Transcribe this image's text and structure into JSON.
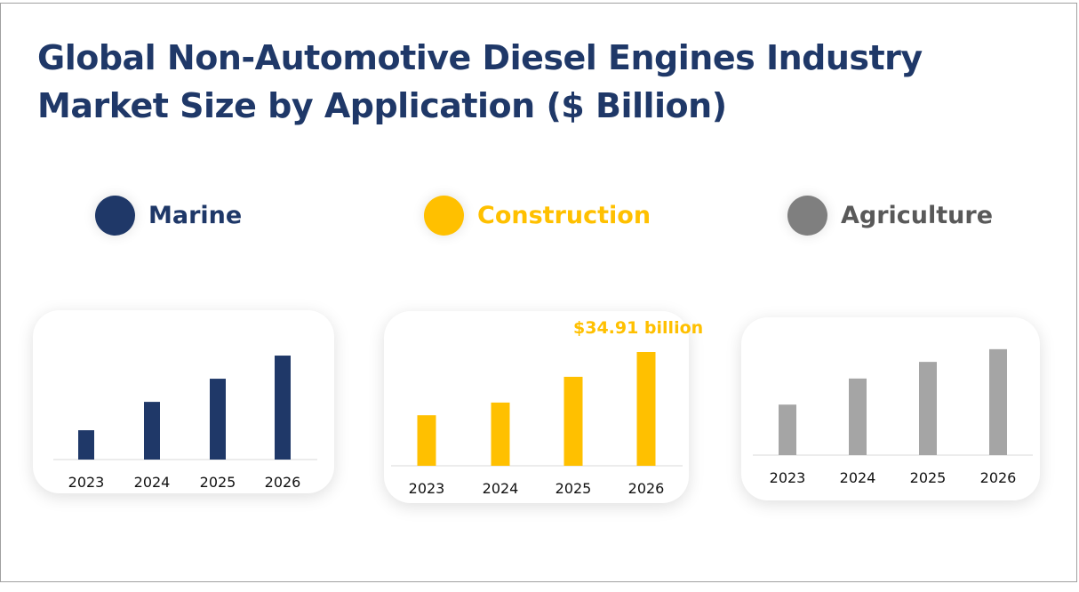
{
  "title": "Global Non-Automotive Diesel Engines Industry Market Size by Application ($ Billion)",
  "legend": [
    {
      "label": "Marine",
      "color": "#1f3868"
    },
    {
      "label": "Construction",
      "color": "#ffc000"
    },
    {
      "label": "Agriculture",
      "color": "#7f7f7f"
    }
  ],
  "chart_data": [
    {
      "type": "bar",
      "series_name": "Marine",
      "color": "#1f3868",
      "categories": [
        "2023",
        "2024",
        "2025",
        "2026"
      ],
      "values": [
        9.0,
        17.7,
        24.8,
        31.9
      ],
      "grid": false
    },
    {
      "type": "bar",
      "series_name": "Construction",
      "color": "#ffc000",
      "categories": [
        "2023",
        "2024",
        "2025",
        "2026"
      ],
      "values": [
        15.5,
        19.4,
        27.3,
        34.91
      ],
      "annotation": "$34.91 billion",
      "grid": false
    },
    {
      "type": "bar",
      "series_name": "Agriculture",
      "color": "#a5a5a5",
      "categories": [
        "2023",
        "2024",
        "2025",
        "2026"
      ],
      "values": [
        15.5,
        23.5,
        28.6,
        32.5
      ],
      "grid": false
    }
  ]
}
